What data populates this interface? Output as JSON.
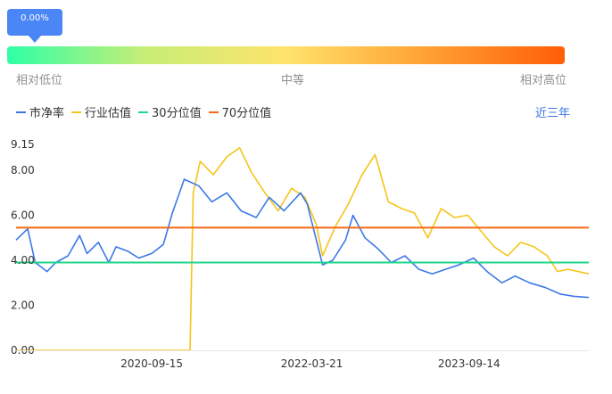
{
  "valuation": {
    "percentile_label": "0.00%",
    "percentile_value": 0.0,
    "scale_left": "相对低位",
    "scale_mid": "中等",
    "scale_right": "相对高位"
  },
  "range_label": "近三年",
  "chart_data": {
    "type": "line",
    "x_domain": [
      "2019-06-05",
      "2024-10-31"
    ],
    "y_domain": [
      0,
      9.15
    ],
    "y_ticks": [
      "9.15",
      "8.00",
      "6.00",
      "4.00",
      "2.00",
      "0.00"
    ],
    "x_ticks": [
      "2020-09-15",
      "2022-03-21",
      "2023-09-14"
    ],
    "series": [
      {
        "name": "市净率",
        "color": "#3d78e8",
        "points": [
          [
            "2019-06-05",
            4.9
          ],
          [
            "2019-07-15",
            5.4
          ],
          [
            "2019-08-10",
            3.9
          ],
          [
            "2019-09-20",
            3.5
          ],
          [
            "2019-10-20",
            3.9
          ],
          [
            "2019-12-01",
            4.2
          ],
          [
            "2020-01-10",
            5.1
          ],
          [
            "2020-02-05",
            4.3
          ],
          [
            "2020-03-15",
            4.8
          ],
          [
            "2020-04-20",
            3.9
          ],
          [
            "2020-05-15",
            4.6
          ],
          [
            "2020-06-25",
            4.4
          ],
          [
            "2020-08-01",
            4.1
          ],
          [
            "2020-09-15",
            4.3
          ],
          [
            "2020-10-25",
            4.7
          ],
          [
            "2020-11-25",
            6.1
          ],
          [
            "2021-01-05",
            7.6
          ],
          [
            "2021-02-25",
            7.3
          ],
          [
            "2021-04-10",
            6.6
          ],
          [
            "2021-06-01",
            7.0
          ],
          [
            "2021-07-20",
            6.2
          ],
          [
            "2021-09-10",
            5.9
          ],
          [
            "2021-10-25",
            6.8
          ],
          [
            "2021-12-15",
            6.2
          ],
          [
            "2022-02-10",
            7.0
          ],
          [
            "2022-03-05",
            6.5
          ],
          [
            "2022-04-27",
            3.8
          ],
          [
            "2022-06-01",
            4.0
          ],
          [
            "2022-07-15",
            4.9
          ],
          [
            "2022-08-10",
            6.0
          ],
          [
            "2022-09-20",
            5.0
          ],
          [
            "2022-11-05",
            4.5
          ],
          [
            "2022-12-20",
            3.9
          ],
          [
            "2023-02-05",
            4.2
          ],
          [
            "2023-03-25",
            3.6
          ],
          [
            "2023-05-10",
            3.4
          ],
          [
            "2023-06-25",
            3.6
          ],
          [
            "2023-08-10",
            3.8
          ],
          [
            "2023-09-30",
            4.1
          ],
          [
            "2023-11-15",
            3.5
          ],
          [
            "2024-01-05",
            3.0
          ],
          [
            "2024-02-20",
            3.3
          ],
          [
            "2024-04-10",
            3.0
          ],
          [
            "2024-06-01",
            2.8
          ],
          [
            "2024-07-25",
            2.5
          ],
          [
            "2024-09-10",
            2.4
          ],
          [
            "2024-10-31",
            2.35
          ]
        ]
      },
      {
        "name": "行业估值",
        "color": "#f5c518",
        "points": [
          [
            "2019-06-05",
            0.0
          ],
          [
            "2021-01-25",
            0.0
          ],
          [
            "2021-02-05",
            7.0
          ],
          [
            "2021-03-01",
            8.4
          ],
          [
            "2021-04-15",
            7.8
          ],
          [
            "2021-06-01",
            8.6
          ],
          [
            "2021-07-15",
            9.0
          ],
          [
            "2021-08-25",
            7.9
          ],
          [
            "2021-10-10",
            7.0
          ],
          [
            "2021-11-25",
            6.2
          ],
          [
            "2022-01-10",
            7.2
          ],
          [
            "2022-02-25",
            6.8
          ],
          [
            "2022-04-05",
            5.6
          ],
          [
            "2022-04-27",
            4.2
          ],
          [
            "2022-06-10",
            5.5
          ],
          [
            "2022-07-25",
            6.5
          ],
          [
            "2022-09-10",
            7.8
          ],
          [
            "2022-10-25",
            8.7
          ],
          [
            "2022-12-10",
            6.6
          ],
          [
            "2023-01-25",
            6.3
          ],
          [
            "2023-03-10",
            6.1
          ],
          [
            "2023-04-25",
            5.0
          ],
          [
            "2023-06-10",
            6.3
          ],
          [
            "2023-07-25",
            5.9
          ],
          [
            "2023-09-10",
            6.0
          ],
          [
            "2023-10-25",
            5.3
          ],
          [
            "2023-12-10",
            4.6
          ],
          [
            "2024-01-25",
            4.2
          ],
          [
            "2024-03-10",
            4.8
          ],
          [
            "2024-04-25",
            4.6
          ],
          [
            "2024-06-10",
            4.2
          ],
          [
            "2024-07-15",
            3.5
          ],
          [
            "2024-08-20",
            3.6
          ],
          [
            "2024-10-31",
            3.4
          ]
        ]
      },
      {
        "name": "30分位值",
        "color": "#1fd68a",
        "points": [
          [
            "2019-06-05",
            3.9
          ],
          [
            "2024-10-31",
            3.9
          ]
        ]
      },
      {
        "name": "70分位值",
        "color": "#f26a16",
        "points": [
          [
            "2019-06-05",
            5.45
          ],
          [
            "2024-10-31",
            5.45
          ]
        ]
      }
    ]
  }
}
